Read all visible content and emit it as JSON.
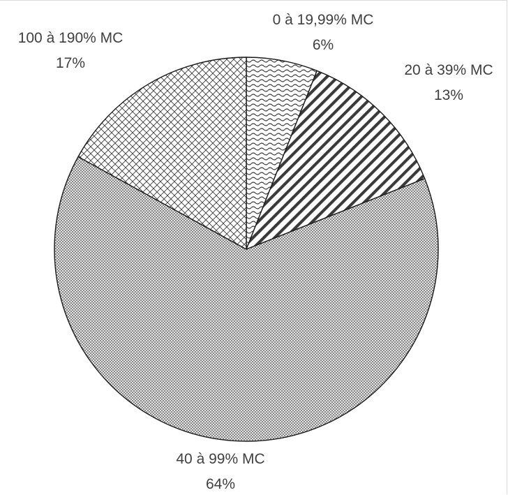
{
  "chart_data": {
    "type": "pie",
    "title": "",
    "legend": "none",
    "start_angle_deg": 0,
    "direction": "clockwise",
    "slices": [
      {
        "label": "0 à 19,99% MC",
        "value_label": "6%",
        "value": 6,
        "pattern": "wave"
      },
      {
        "label": "20 à 39% MC",
        "value_label": "13%",
        "value": 13,
        "pattern": "diagonal-stripes"
      },
      {
        "label": "40 à 99% MC",
        "value_label": "64%",
        "value": 64,
        "pattern": "fine-dots"
      },
      {
        "label": "100 à 190% MC",
        "value_label": "17%",
        "value": 17,
        "pattern": "crosshatch"
      }
    ],
    "colors": {
      "outline": "#1a1a1a",
      "pattern_ink": "#3a3a3a",
      "background": "#ffffff",
      "label_text": "#404040"
    }
  }
}
